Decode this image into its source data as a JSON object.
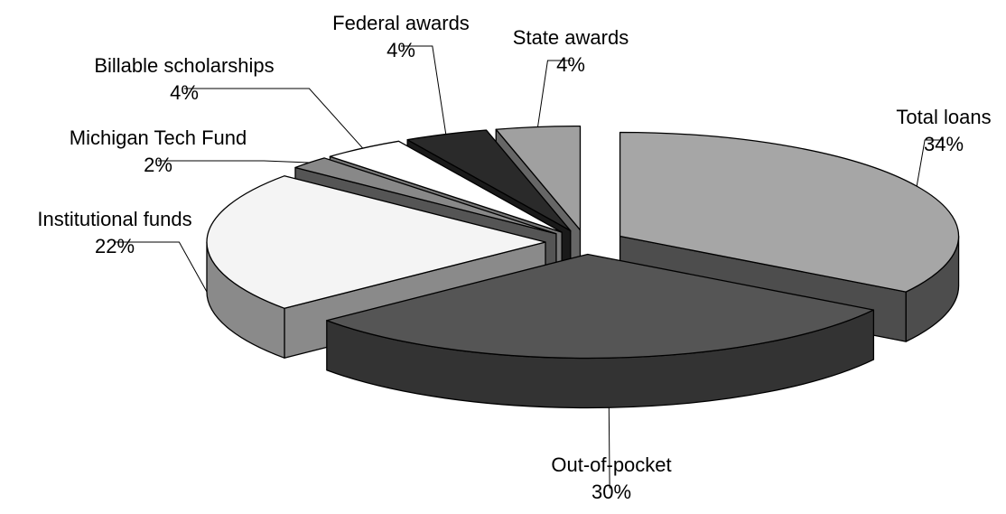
{
  "chart_data": {
    "type": "pie",
    "variant": "3d-exploded",
    "legend": "none",
    "slices": [
      {
        "label": "Total loans",
        "value": 34,
        "value_label": "34%",
        "top_color": "#a6a6a6",
        "side_color": "#4d4d4d"
      },
      {
        "label": "Out-of-pocket",
        "value": 30,
        "value_label": "30%",
        "top_color": "#555555",
        "side_color": "#333333"
      },
      {
        "label": "Institutional funds",
        "value": 22,
        "value_label": "22%",
        "top_color": "#f4f4f4",
        "side_color": "#8a8a8a"
      },
      {
        "label": "Michigan Tech Fund",
        "value": 2,
        "value_label": "2%",
        "top_color": "#888888",
        "side_color": "#555555"
      },
      {
        "label": "Billable scholarships",
        "value": 4,
        "value_label": "4%",
        "top_color": "#ffffff",
        "side_color": "#777777"
      },
      {
        "label": "Federal awards",
        "value": 4,
        "value_label": "4%",
        "top_color": "#2a2a2a",
        "side_color": "#1a1a1a"
      },
      {
        "label": "State awards",
        "value": 4,
        "value_label": "4%",
        "top_color": "#a0a0a0",
        "side_color": "#666666"
      },
      {
        "label": "",
        "value": 0,
        "value_label": "",
        "top_color": "#555555",
        "side_color": "#333333"
      }
    ]
  }
}
